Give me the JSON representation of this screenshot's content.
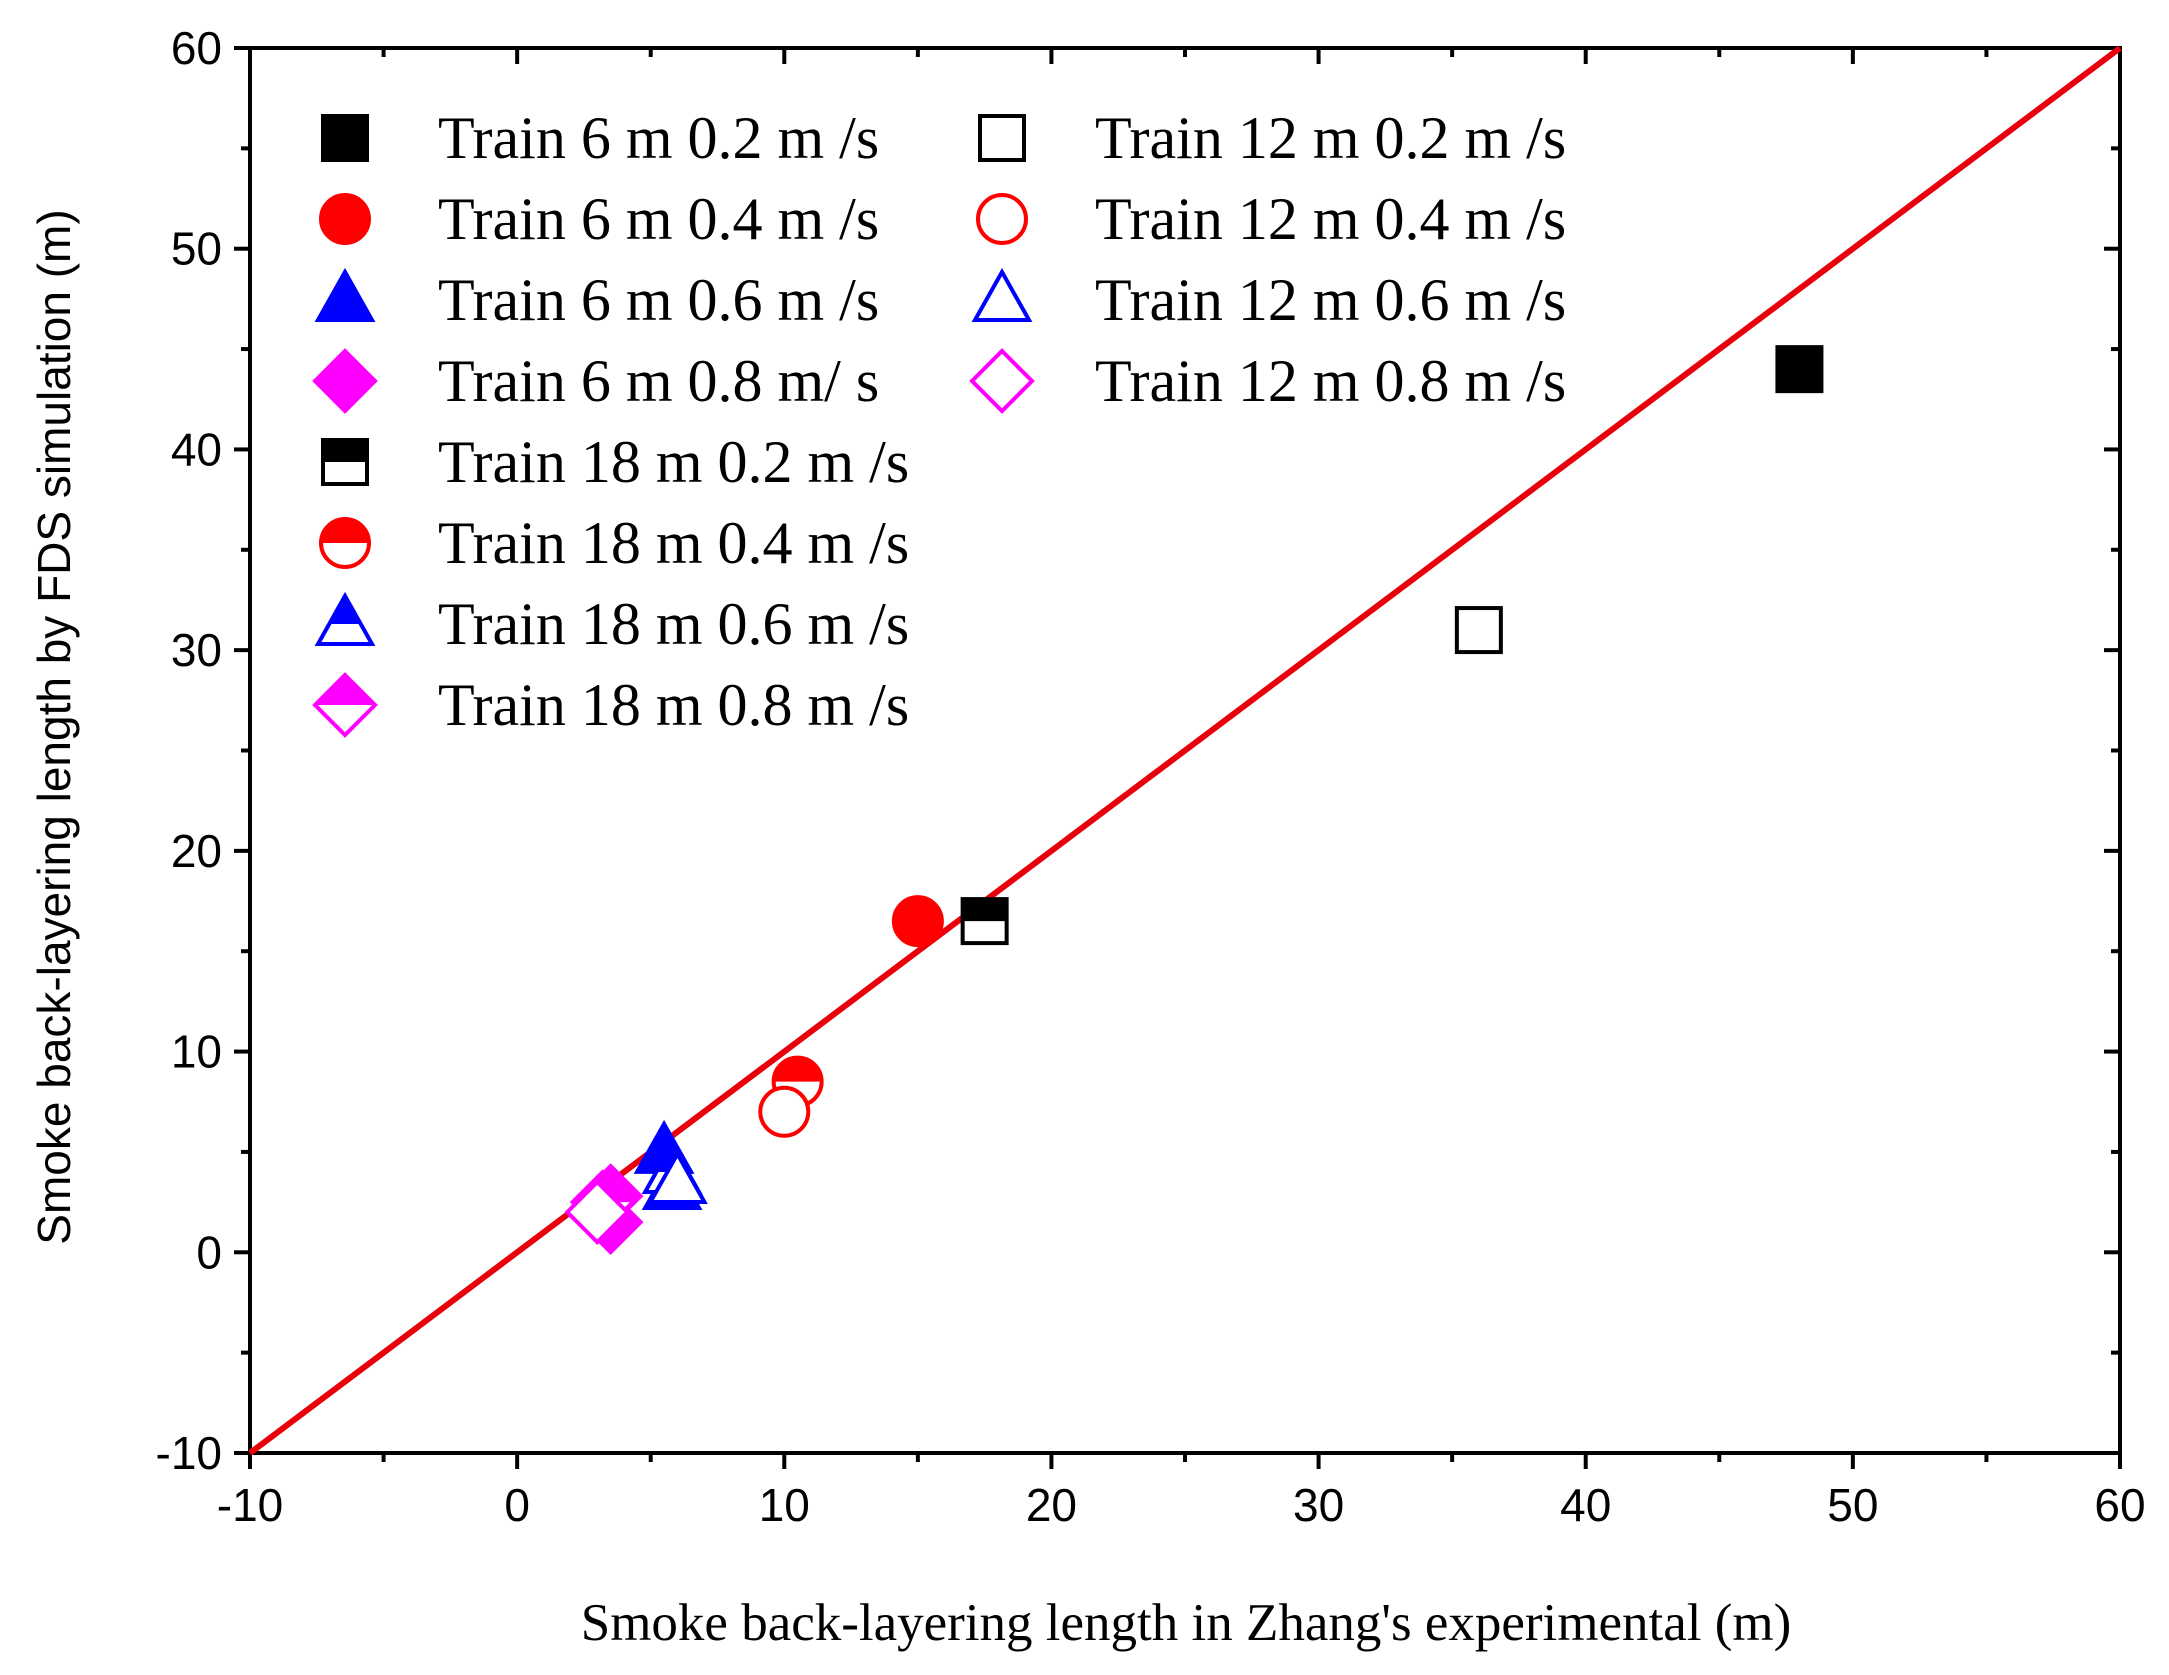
{
  "chart_data": {
    "type": "scatter",
    "xlabel": "Smoke back-layering length in Zhang's experimental (m)",
    "ylabel": "Smoke back-layering length by FDS simulation (m)",
    "xlim": [
      -10,
      60
    ],
    "ylim": [
      -10,
      60
    ],
    "x_ticks": [
      -10,
      0,
      10,
      20,
      30,
      40,
      50,
      60
    ],
    "y_ticks": [
      -10,
      0,
      10,
      20,
      30,
      40,
      50,
      60
    ],
    "x_tick_labels": [
      "-10",
      "0",
      "10",
      "20",
      "30",
      "40",
      "50",
      "60"
    ],
    "y_tick_labels": [
      "-10",
      "0",
      "10",
      "20",
      "30",
      "40",
      "50",
      "60"
    ],
    "reference_line": {
      "name": "y = x",
      "from": [
        -10,
        -10
      ],
      "to": [
        60,
        60
      ],
      "color": "#e8000b"
    },
    "legend_position": "top-left",
    "series": [
      {
        "name": "Train 6 m 0.2 m /s",
        "marker": "square",
        "fill": "full",
        "color": "#000000",
        "points": [
          [
            48,
            44
          ]
        ]
      },
      {
        "name": "Train 6 m 0.4 m /s",
        "marker": "circle",
        "fill": "full",
        "color": "#ff0000",
        "points": [
          [
            15,
            16.5
          ]
        ]
      },
      {
        "name": "Train 6 m 0.6 m /s",
        "marker": "triangle",
        "fill": "full",
        "color": "#0000ff",
        "points": [
          [
            5.5,
            5
          ],
          [
            5.8,
            3.2
          ]
        ]
      },
      {
        "name": "Train 6 m 0.8 m/ s",
        "marker": "diamond",
        "fill": "full",
        "color": "#ff00ff",
        "points": [
          [
            3.5,
            2.8
          ],
          [
            3.5,
            1.5
          ]
        ]
      },
      {
        "name": "Train 18 m 0.2 m /s",
        "marker": "square",
        "fill": "top",
        "color": "#000000",
        "points": [
          [
            17.5,
            16.5
          ]
        ]
      },
      {
        "name": "Train 18 m 0.4 m /s",
        "marker": "circle",
        "fill": "top",
        "color": "#ff0000",
        "points": [
          [
            10.5,
            8.5
          ]
        ]
      },
      {
        "name": "Train 18 m 0.6 m /s",
        "marker": "triangle",
        "fill": "top",
        "color": "#0000ff",
        "points": [
          [
            5.8,
            4
          ]
        ]
      },
      {
        "name": "Train 18 m 0.8 m /s",
        "marker": "diamond",
        "fill": "top",
        "color": "#ff00ff",
        "points": [
          [
            3.2,
            2.5
          ]
        ]
      },
      {
        "name": "Train 12 m 0.2 m /s",
        "marker": "square",
        "fill": "none",
        "color": "#000000",
        "points": [
          [
            36,
            31
          ]
        ]
      },
      {
        "name": "Train 12 m 0.4 m /s",
        "marker": "circle",
        "fill": "none",
        "color": "#ff0000",
        "points": [
          [
            10,
            7
          ]
        ]
      },
      {
        "name": "Train 12 m 0.6 m /s",
        "marker": "triangle",
        "fill": "none",
        "color": "#0000ff",
        "points": [
          [
            6,
            3.5
          ]
        ]
      },
      {
        "name": "Train 12 m 0.8 m /s",
        "marker": "diamond",
        "fill": "none",
        "color": "#ff00ff",
        "points": [
          [
            3,
            2
          ]
        ]
      }
    ]
  }
}
